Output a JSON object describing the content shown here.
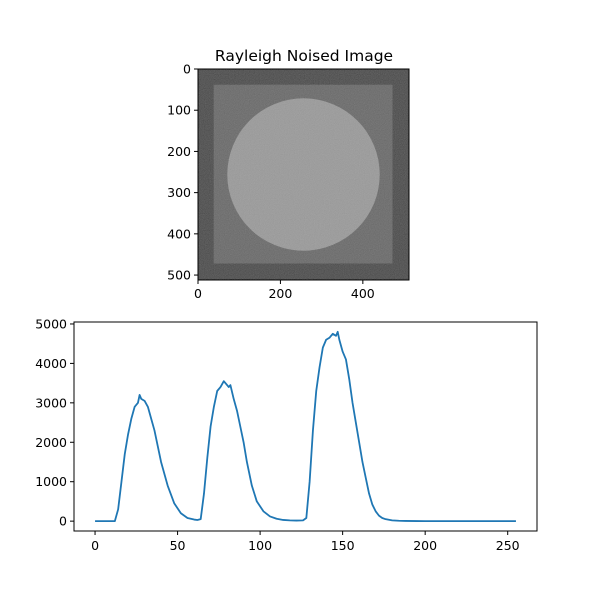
{
  "chart_data": [
    {
      "type": "image",
      "title": "Rayleigh Noised Image",
      "xticks": [
        0,
        200,
        400
      ],
      "yticks": [
        0,
        100,
        200,
        300,
        400,
        500
      ],
      "xlim": [
        0,
        512
      ],
      "ylim": [
        512,
        0
      ],
      "image": {
        "size": 512,
        "background_gray": 34,
        "square": {
          "x0": 38,
          "x1": 472,
          "y0": 38,
          "y1": 472,
          "gray": 90
        },
        "circle": {
          "cx": 256,
          "cy": 256,
          "r": 185,
          "gray": 150
        }
      }
    },
    {
      "type": "line",
      "title": "",
      "xlabel": "",
      "ylabel": "",
      "xlim": [
        -12.75,
        267.75
      ],
      "ylim": [
        -250,
        5050
      ],
      "xticks": [
        0,
        50,
        100,
        150,
        200,
        250
      ],
      "yticks": [
        0,
        1000,
        2000,
        3000,
        4000,
        5000
      ],
      "color": "#1f77b4",
      "x": [
        0,
        12,
        14,
        16,
        18,
        20,
        22,
        24,
        26,
        27,
        28,
        30,
        32,
        34,
        36,
        38,
        40,
        44,
        48,
        52,
        56,
        60,
        62,
        64,
        66,
        68,
        70,
        72,
        74,
        76,
        78,
        80,
        81,
        82,
        84,
        86,
        88,
        90,
        92,
        95,
        98,
        102,
        106,
        110,
        114,
        118,
        122,
        126,
        128,
        130,
        132,
        134,
        136,
        138,
        140,
        142,
        144,
        146,
        147,
        148,
        150,
        152,
        154,
        156,
        158,
        160,
        162,
        164,
        166,
        168,
        170,
        172,
        174,
        176,
        180,
        184,
        188,
        195,
        200,
        210,
        255
      ],
      "y": [
        0,
        0,
        300,
        1000,
        1700,
        2200,
        2600,
        2900,
        3000,
        3200,
        3100,
        3050,
        2900,
        2600,
        2300,
        1900,
        1500,
        900,
        450,
        200,
        80,
        40,
        30,
        50,
        700,
        1600,
        2400,
        2900,
        3300,
        3400,
        3550,
        3450,
        3400,
        3450,
        3100,
        2800,
        2400,
        2000,
        1500,
        900,
        500,
        250,
        120,
        60,
        30,
        20,
        15,
        20,
        80,
        1000,
        2300,
        3300,
        3900,
        4400,
        4600,
        4650,
        4750,
        4700,
        4800,
        4600,
        4300,
        4100,
        3600,
        3000,
        2500,
        2000,
        1500,
        1100,
        700,
        420,
        250,
        140,
        80,
        50,
        20,
        10,
        5,
        2,
        1,
        0,
        0
      ]
    }
  ]
}
